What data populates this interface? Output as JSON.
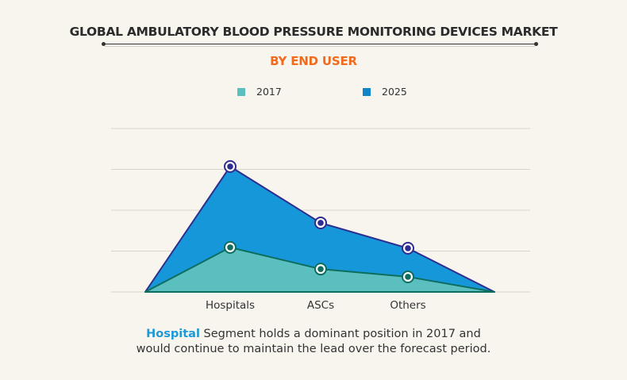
{
  "chart_data": {
    "type": "area",
    "title": "GLOBAL AMBULATORY BLOOD PRESSURE MONITORING DEVICES MARKET",
    "subtitle": "BY END USER",
    "categories": [
      "Hospitals",
      "ASCs",
      "Others"
    ],
    "series": [
      {
        "name": "2025",
        "color": "#1697d9",
        "line_color": "#2e2d8f",
        "values": [
          3.07,
          1.69,
          1.07
        ]
      },
      {
        "name": "2017",
        "color": "#5bbfc0",
        "line_color": "#0d6e5e",
        "values": [
          1.09,
          0.56,
          0.37
        ]
      }
    ],
    "xlabel": "",
    "ylabel": "",
    "ylim": [
      0,
      4
    ],
    "y_ticks_labeled": false,
    "grid": true,
    "legend_position": "top-center"
  },
  "legend": [
    {
      "label": "2017",
      "color": "#5bbfc0"
    },
    {
      "label": "2025",
      "color": "#1185cc"
    }
  ],
  "caption": {
    "highlight": "Hospital",
    "text": " Segment holds a dominant position in 2017 and",
    "text2": "would continue to maintain the lead over the forecast period."
  }
}
